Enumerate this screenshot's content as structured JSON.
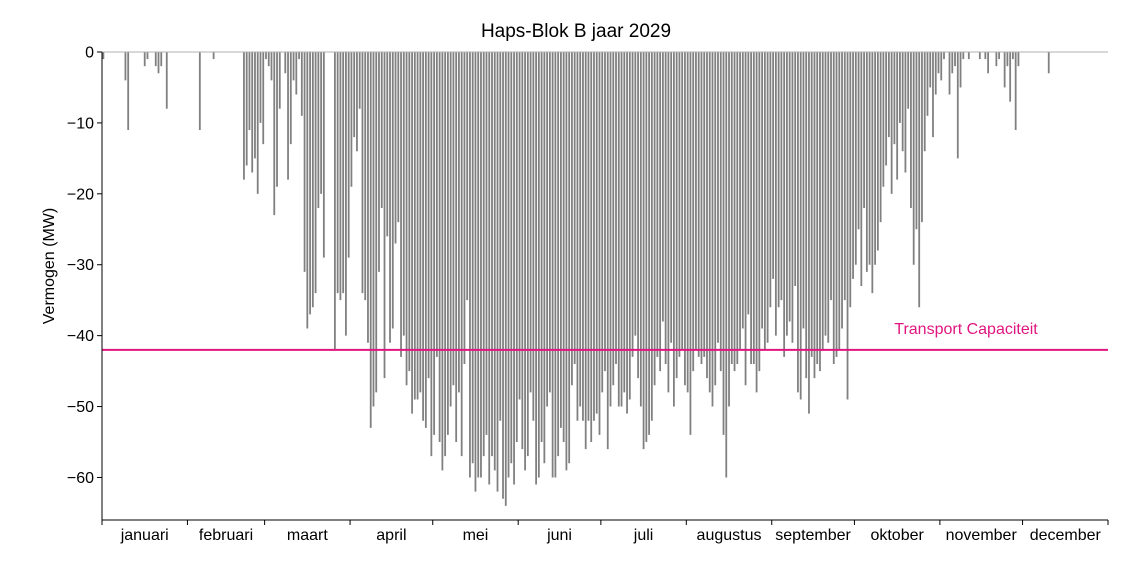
{
  "chart_data": {
    "type": "bar",
    "title": "Haps-Blok B jaar 2029",
    "xlabel": "",
    "ylabel": "Vermogen (MW)",
    "ylim": [
      -66,
      0
    ],
    "yticks": [
      0,
      -10,
      -20,
      -30,
      -40,
      -50,
      -60
    ],
    "grid": false,
    "months": [
      "januari",
      "februari",
      "maart",
      "april",
      "mei",
      "juni",
      "juli",
      "augustus",
      "september",
      "oktober",
      "november",
      "december"
    ],
    "month_days": [
      31,
      28,
      31,
      30,
      31,
      30,
      31,
      31,
      30,
      31,
      30,
      31
    ],
    "series": [
      {
        "color": "#808080",
        "description": "Estimated minimum (most negative) hourly power per day, MW",
        "daily_min": [
          -1,
          0,
          0,
          0,
          0,
          0,
          0,
          0,
          -4,
          -11,
          0,
          0,
          0,
          0,
          0,
          -2,
          -1,
          0,
          0,
          -2,
          -3,
          -2,
          0,
          -8,
          0,
          0,
          0,
          0,
          0,
          0,
          0,
          0,
          0,
          0,
          0,
          -11,
          0,
          0,
          0,
          0,
          -1,
          0,
          0,
          0,
          0,
          0,
          0,
          0,
          0,
          0,
          0,
          -18,
          -16,
          -11,
          -17,
          -15,
          -20,
          -10,
          -13,
          -1,
          -2,
          -4,
          -23,
          -19,
          -8,
          0,
          -3,
          -18,
          -13,
          -4,
          -6,
          -1,
          -9,
          -31,
          -39,
          -37,
          -36,
          -34,
          -22,
          -20,
          -29,
          0,
          0,
          0,
          -42,
          -34,
          -35,
          -34,
          -40,
          -29,
          -19,
          -12,
          -14,
          -8,
          -34,
          -35,
          -41,
          -53,
          -50,
          -48,
          -31,
          -22,
          -46,
          -26,
          -41,
          -39,
          -27,
          -24,
          -43,
          -40,
          -47,
          -45,
          -51,
          -49,
          -49,
          -48,
          -52,
          -53,
          -46,
          -57,
          -54,
          -43,
          -55,
          -59,
          -57,
          -54,
          -50,
          -47,
          -55,
          -48,
          -57,
          -44,
          -35,
          -60,
          -58,
          -62,
          -60,
          -60,
          -57,
          -54,
          -61,
          -57,
          -59,
          -62,
          -52,
          -63,
          -64,
          -60,
          -58,
          -61,
          -55,
          -49,
          -56,
          -59,
          -57,
          -48,
          -52,
          -61,
          -60,
          -55,
          -58,
          -50,
          -48,
          -60,
          -60,
          -57,
          -53,
          -55,
          -59,
          -58,
          -47,
          -44,
          -52,
          -50,
          -52,
          -56,
          -52,
          -55,
          -52,
          -51,
          -54,
          -48,
          -45,
          -56,
          -50,
          -47,
          -44,
          -50,
          -50,
          -48,
          -51,
          -49,
          -43,
          -40,
          -46,
          -50,
          -56,
          -55,
          -54,
          -52,
          -47,
          -43,
          -45,
          -38,
          -44,
          -48,
          -41,
          -50,
          -46,
          -43,
          -42,
          -47,
          -48,
          -54,
          -45,
          -42,
          -43,
          -44,
          -43,
          -46,
          -48,
          -50,
          -47,
          -41,
          -45,
          -54,
          -60,
          -50,
          -44,
          -45,
          -44,
          -42,
          -39,
          -47,
          -37,
          -44,
          -44,
          -48,
          -45,
          -39,
          -42,
          -41,
          -36,
          -32,
          -40,
          -36,
          -35,
          -43,
          -40,
          -38,
          -41,
          -33,
          -48,
          -49,
          -39,
          -46,
          -51,
          -43,
          -46,
          -44,
          -45,
          -42,
          -40,
          -41,
          -35,
          -44,
          -43,
          -42,
          -39,
          -35,
          -49,
          -36,
          -32,
          -30,
          -25,
          -33,
          -22,
          -31,
          -30,
          -34,
          -30,
          -28,
          -24,
          -19,
          -16,
          -12,
          -20,
          -13,
          -18,
          -10,
          -14,
          -17,
          -8,
          -22,
          -30,
          -25,
          -36,
          -24,
          -14,
          -9,
          -5,
          -12,
          -6,
          -3,
          -4,
          -1,
          0,
          -6,
          -3,
          -2,
          -15,
          -5,
          -1,
          0,
          -1,
          0,
          0,
          0,
          -1,
          0,
          -1,
          -3,
          0,
          0,
          -2,
          -1,
          0,
          -5,
          -2,
          -7,
          -1,
          -11,
          -2,
          0,
          0,
          0,
          0,
          0,
          0,
          0,
          0,
          0,
          0,
          -3,
          0,
          0,
          0,
          0,
          0,
          0,
          0,
          0,
          0,
          0,
          0,
          0,
          0,
          0,
          0,
          0,
          0,
          0,
          0,
          0,
          0,
          0,
          0,
          0,
          0,
          0,
          0,
          0,
          0,
          0,
          0,
          0,
          0
        ]
      }
    ],
    "annotations": [
      {
        "label": "Transport Capaciteit",
        "y": -42,
        "color": "#e0157f"
      }
    ]
  }
}
